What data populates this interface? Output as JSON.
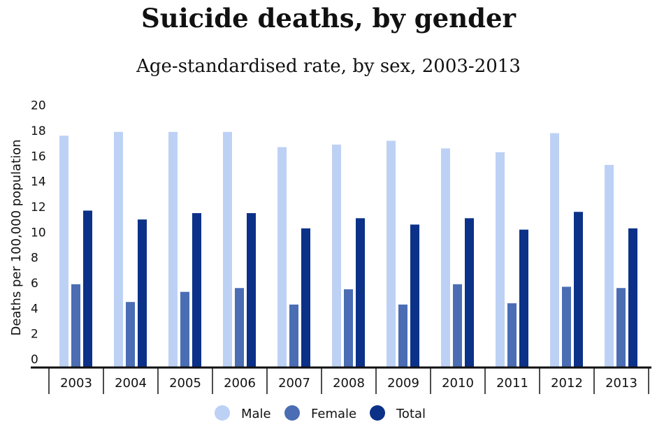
{
  "chart_data": {
    "type": "bar",
    "title": "Suicide deaths, by gender",
    "subtitle": "Age-standardised rate, by sex, 2003-2013",
    "xlabel": "",
    "ylabel": "Deaths per 100,000 population",
    "ylim": [
      0,
      20
    ],
    "yticks": [
      "0",
      "2",
      "4",
      "6",
      "8",
      "10",
      "12",
      "14",
      "16",
      "18",
      "20"
    ],
    "grid": false,
    "legend_position": "bottom",
    "categories": [
      "2003",
      "2004",
      "2005",
      "2006",
      "2007",
      "2008",
      "2009",
      "2010",
      "2011",
      "2012",
      "2013"
    ],
    "series": [
      {
        "name": "Male",
        "color": "#bdd1f5",
        "values": [
          17.6,
          17.9,
          17.9,
          17.9,
          16.7,
          16.9,
          17.2,
          16.6,
          16.3,
          17.8,
          15.3
        ]
      },
      {
        "name": "Female",
        "color": "#4a6db4",
        "values": [
          5.9,
          4.5,
          5.3,
          5.6,
          4.3,
          5.5,
          4.3,
          5.9,
          4.4,
          5.7,
          5.6
        ]
      },
      {
        "name": "Total",
        "color": "#0c3189",
        "values": [
          11.7,
          11.0,
          11.5,
          11.5,
          10.3,
          11.1,
          10.6,
          11.1,
          10.2,
          11.6,
          10.3
        ]
      }
    ]
  }
}
